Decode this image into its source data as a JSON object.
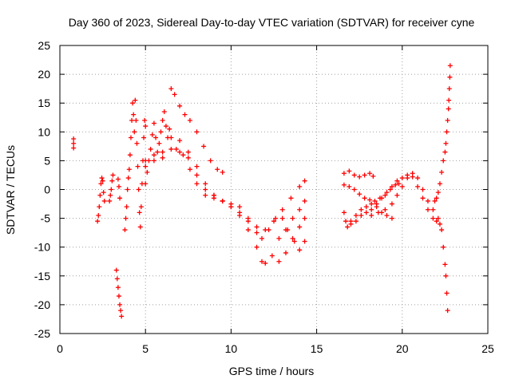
{
  "chart_data": {
    "type": "scatter",
    "title": "Day 360 of 2023, Sidereal Day-to-day VTEC variation (SDTVAR) for receiver cyne",
    "xlabel": "GPS time / hours",
    "ylabel": "SDTVAR / TECUs",
    "xlim": [
      0,
      25
    ],
    "ylim": [
      -25,
      25
    ],
    "xticks": [
      0,
      5,
      10,
      15,
      20,
      25
    ],
    "yticks": [
      -25,
      -20,
      -15,
      -10,
      -5,
      0,
      5,
      10,
      15,
      20,
      25
    ],
    "grid": true,
    "marker": "+",
    "color": "#ff0000",
    "series": [
      {
        "name": "isolated-start",
        "points": [
          [
            0.8,
            8.8
          ],
          [
            0.8,
            8.0
          ],
          [
            0.8,
            7.2
          ]
        ]
      },
      {
        "name": "early-cluster",
        "points": [
          [
            2.2,
            -5.5
          ],
          [
            2.25,
            -4.5
          ],
          [
            2.3,
            -3.0
          ],
          [
            2.35,
            -1.0
          ],
          [
            2.4,
            1.0
          ],
          [
            2.45,
            2.0
          ],
          [
            2.5,
            1.5
          ],
          [
            2.55,
            -0.5
          ],
          [
            2.6,
            -2.0
          ],
          [
            2.9,
            -2.0
          ],
          [
            2.95,
            -1.0
          ],
          [
            3.0,
            0.0
          ],
          [
            3.05,
            1.5
          ],
          [
            3.1,
            2.5
          ],
          [
            3.4,
            1.8
          ],
          [
            3.45,
            0.5
          ],
          [
            3.5,
            -1.5
          ]
        ]
      },
      {
        "name": "low-dip",
        "points": [
          [
            3.3,
            -14.0
          ],
          [
            3.35,
            -15.5
          ],
          [
            3.4,
            -17.0
          ],
          [
            3.45,
            -18.5
          ],
          [
            3.5,
            -20.0
          ],
          [
            3.55,
            -21.0
          ],
          [
            3.6,
            -22.0
          ]
        ]
      },
      {
        "name": "spike-cluster-a",
        "points": [
          [
            3.8,
            -7.0
          ],
          [
            3.85,
            -5.0
          ],
          [
            3.9,
            -3.0
          ],
          [
            3.95,
            0.0
          ],
          [
            4.0,
            2.0
          ],
          [
            4.05,
            3.5
          ],
          [
            4.1,
            6.0
          ],
          [
            4.15,
            9.0
          ],
          [
            4.2,
            12.0
          ],
          [
            4.25,
            15.0
          ],
          [
            4.3,
            13.0
          ],
          [
            4.35,
            10.0
          ],
          [
            4.4,
            15.5
          ],
          [
            4.45,
            12.0
          ],
          [
            4.5,
            8.0
          ],
          [
            4.55,
            4.0
          ],
          [
            4.6,
            0.0
          ],
          [
            4.65,
            -4.0
          ],
          [
            4.7,
            -6.5
          ],
          [
            4.75,
            -3.0
          ],
          [
            4.8,
            1.0
          ],
          [
            4.85,
            5.0
          ],
          [
            4.9,
            9.0
          ],
          [
            4.95,
            12.0
          ],
          [
            5.0,
            11.0
          ]
        ]
      },
      {
        "name": "spike-cluster-b",
        "points": [
          [
            5.0,
            1.0
          ],
          [
            5.1,
            3.0
          ],
          [
            5.2,
            5.0
          ],
          [
            5.3,
            7.0
          ],
          [
            5.4,
            9.5
          ],
          [
            5.5,
            11.5
          ],
          [
            5.6,
            9.0
          ],
          [
            5.7,
            6.5
          ],
          [
            5.8,
            8.0
          ],
          [
            5.9,
            10.0
          ],
          [
            6.0,
            12.0
          ],
          [
            6.1,
            13.5
          ],
          [
            6.2,
            11.0
          ],
          [
            6.3,
            9.0
          ],
          [
            6.4,
            10.5
          ]
        ]
      },
      {
        "name": "track-1",
        "points": [
          [
            6.5,
            17.5
          ],
          [
            6.7,
            16.5
          ],
          [
            7.0,
            14.5
          ],
          [
            7.3,
            13.0
          ],
          [
            7.6,
            12.0
          ],
          [
            8.0,
            10.0
          ],
          [
            8.4,
            7.5
          ],
          [
            8.8,
            5.0
          ],
          [
            9.2,
            3.5
          ],
          [
            9.5,
            3.0
          ]
        ]
      },
      {
        "name": "track-2",
        "points": [
          [
            5.0,
            5.0
          ],
          [
            5.5,
            6.0
          ],
          [
            6.0,
            6.5
          ],
          [
            6.5,
            9.0
          ],
          [
            7.0,
            8.5
          ],
          [
            7.5,
            6.5
          ],
          [
            8.0,
            4.0
          ],
          [
            8.5,
            1.0
          ],
          [
            9.0,
            -1.0
          ],
          [
            9.5,
            -2.0
          ],
          [
            10.0,
            -3.0
          ],
          [
            10.5,
            -4.0
          ],
          [
            11.0,
            -5.5
          ],
          [
            11.5,
            -7.5
          ],
          [
            11.8,
            -8.5
          ],
          [
            12.2,
            -7.0
          ],
          [
            12.6,
            -5.0
          ],
          [
            13.0,
            -3.5
          ],
          [
            13.5,
            -1.5
          ],
          [
            14.0,
            0.5
          ],
          [
            14.3,
            1.5
          ]
        ]
      },
      {
        "name": "track-3",
        "points": [
          [
            5.0,
            4.0
          ],
          [
            5.5,
            5.0
          ],
          [
            6.0,
            5.5
          ],
          [
            6.5,
            7.0
          ],
          [
            7.0,
            6.5
          ],
          [
            7.5,
            5.5
          ],
          [
            8.0,
            2.5
          ],
          [
            8.5,
            0.0
          ],
          [
            9.0,
            -1.0
          ],
          [
            9.5,
            -2.0
          ],
          [
            10.0,
            -3.0
          ],
          [
            10.5,
            -4.5
          ],
          [
            11.0,
            -7.0
          ],
          [
            11.5,
            -10.0
          ],
          [
            11.8,
            -12.5
          ],
          [
            12.0,
            -12.8
          ],
          [
            12.4,
            -11.5
          ],
          [
            12.8,
            -8.5
          ],
          [
            13.2,
            -7.0
          ],
          [
            13.6,
            -5.0
          ],
          [
            14.0,
            -3.5
          ],
          [
            14.3,
            -2.0
          ]
        ]
      },
      {
        "name": "track-4",
        "points": [
          [
            6.8,
            7.0
          ],
          [
            7.2,
            6.0
          ],
          [
            7.6,
            3.5
          ],
          [
            8.0,
            1.0
          ],
          [
            8.5,
            -1.0
          ],
          [
            9.0,
            -1.5
          ],
          [
            9.5,
            -2.0
          ],
          [
            10.0,
            -2.5
          ],
          [
            10.5,
            -3.0
          ],
          [
            11.0,
            -5.0
          ],
          [
            11.5,
            -6.5
          ],
          [
            12.0,
            -7.0
          ],
          [
            12.5,
            -5.5
          ],
          [
            13.0,
            -5.0
          ],
          [
            13.3,
            -7.0
          ],
          [
            13.7,
            -9.0
          ],
          [
            14.0,
            -10.5
          ],
          [
            14.3,
            -9.0
          ],
          [
            12.8,
            -12.5
          ],
          [
            13.2,
            -11.0
          ],
          [
            13.6,
            -8.5
          ],
          [
            14.0,
            -6.5
          ],
          [
            14.3,
            -5.0
          ]
        ]
      },
      {
        "name": "late-track-a",
        "points": [
          [
            16.6,
            2.8
          ],
          [
            16.9,
            3.2
          ],
          [
            17.2,
            2.5
          ],
          [
            17.5,
            2.2
          ],
          [
            17.8,
            2.5
          ],
          [
            18.1,
            2.8
          ],
          [
            18.3,
            2.3
          ]
        ]
      },
      {
        "name": "late-track-b",
        "points": [
          [
            16.6,
            0.8
          ],
          [
            16.9,
            0.5
          ],
          [
            17.2,
            0.0
          ],
          [
            17.5,
            -0.8
          ],
          [
            17.8,
            -1.5
          ],
          [
            18.1,
            -1.8
          ],
          [
            18.4,
            -2.0
          ],
          [
            18.7,
            -1.5
          ],
          [
            19.0,
            -1.0
          ],
          [
            19.3,
            0.0
          ],
          [
            19.6,
            0.8
          ],
          [
            19.8,
            1.0
          ]
        ]
      },
      {
        "name": "late-track-c",
        "points": [
          [
            16.6,
            -4.0
          ],
          [
            16.8,
            -6.5
          ],
          [
            17.0,
            -5.5
          ],
          [
            17.3,
            -4.5
          ],
          [
            17.6,
            -3.5
          ],
          [
            17.9,
            -3.0
          ],
          [
            18.2,
            -2.5
          ],
          [
            18.5,
            -3.0
          ],
          [
            18.8,
            -4.0
          ],
          [
            19.1,
            -4.5
          ],
          [
            19.4,
            -5.0
          ]
        ]
      },
      {
        "name": "late-track-d",
        "points": [
          [
            16.7,
            -5.5
          ],
          [
            17.0,
            -6.0
          ],
          [
            17.3,
            -5.5
          ],
          [
            17.6,
            -4.5
          ],
          [
            17.9,
            -4.0
          ],
          [
            18.2,
            -3.5
          ],
          [
            18.5,
            -2.5
          ],
          [
            18.8,
            -1.5
          ],
          [
            19.1,
            -0.5
          ],
          [
            19.4,
            0.5
          ],
          [
            19.7,
            1.5
          ],
          [
            20.0,
            2.0
          ],
          [
            20.3,
            2.5
          ],
          [
            20.6,
            2.2
          ],
          [
            20.9,
            0.5
          ],
          [
            21.2,
            -1.5
          ],
          [
            21.5,
            -3.5
          ],
          [
            21.8,
            -5.0
          ],
          [
            22.0,
            -5.5
          ],
          [
            22.2,
            -6.0
          ]
        ]
      },
      {
        "name": "late-track-e",
        "points": [
          [
            18.2,
            -4.5
          ],
          [
            18.6,
            -4.0
          ],
          [
            19.0,
            -3.5
          ],
          [
            19.4,
            -2.5
          ],
          [
            19.7,
            -1.0
          ],
          [
            20.0,
            0.5
          ],
          [
            20.3,
            2.0
          ],
          [
            20.6,
            2.8
          ],
          [
            20.9,
            2.0
          ],
          [
            21.2,
            0.0
          ],
          [
            21.5,
            -2.0
          ],
          [
            21.8,
            -3.5
          ],
          [
            22.1,
            -5.0
          ],
          [
            22.3,
            -7.0
          ],
          [
            22.4,
            -10.0
          ],
          [
            22.5,
            -13.0
          ],
          [
            22.55,
            -15.0
          ],
          [
            22.6,
            -18.0
          ],
          [
            22.65,
            -21.0
          ]
        ]
      },
      {
        "name": "end-rise",
        "points": [
          [
            21.9,
            -2.0
          ],
          [
            22.0,
            -1.5
          ],
          [
            22.1,
            -0.5
          ],
          [
            22.2,
            1.0
          ],
          [
            22.3,
            3.0
          ],
          [
            22.4,
            5.0
          ],
          [
            22.5,
            6.5
          ],
          [
            22.55,
            8.0
          ],
          [
            22.6,
            10.0
          ],
          [
            22.65,
            12.0
          ],
          [
            22.7,
            14.0
          ],
          [
            22.72,
            15.5
          ],
          [
            22.75,
            17.5
          ],
          [
            22.78,
            19.5
          ],
          [
            22.8,
            21.5
          ]
        ]
      }
    ]
  }
}
